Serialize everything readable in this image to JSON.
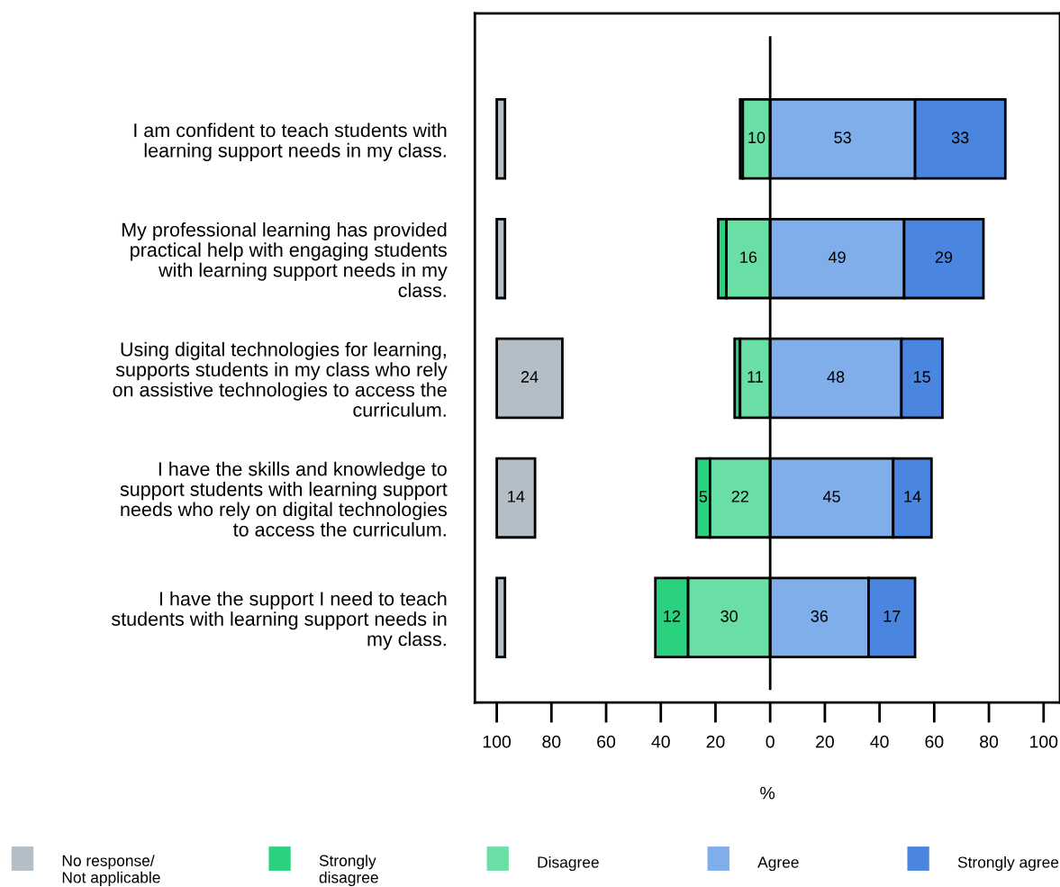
{
  "chart_data": {
    "type": "bar",
    "orientation": "horizontal",
    "xlabel": "%",
    "categories": [
      "I am confident to teach students with\nlearning support needs in my class.",
      "My professional learning has provided\npractical help with engaging students\nwith learning support needs in my\nclass.",
      "Using digital technologies for learning,\nsupports students in my class who rely\non assistive technologies to access the\ncurriculum.",
      "I have the skills and knowledge to\nsupport students with learning support\nneeds who rely on digital technologies\nto access the curriculum.",
      "I have the support I need to teach\nstudents with learning support needs in\nmy class."
    ],
    "series": [
      {
        "name": "No response/\nNot applicable",
        "color": "#b4bec6",
        "values": [
          3,
          3,
          24,
          14,
          3
        ],
        "base": [
          -100,
          -100,
          -100,
          -100,
          -100
        ],
        "value_labels": [
          null,
          null,
          "24",
          "14",
          null
        ]
      },
      {
        "name": "Strongly\ndisagree",
        "color": "#2ad17f",
        "values": [
          1,
          3,
          2,
          5,
          12
        ],
        "base": [
          -11,
          -19,
          -13,
          -27,
          -42
        ],
        "value_labels": [
          null,
          null,
          null,
          "5",
          "12"
        ]
      },
      {
        "name": "Disagree",
        "color": "#6adfa5",
        "values": [
          10,
          16,
          11,
          22,
          30
        ],
        "base": [
          -10,
          -16,
          -11,
          -22,
          -30
        ],
        "value_labels": [
          "10",
          "16",
          "11",
          "22",
          "30"
        ]
      },
      {
        "name": "Agree",
        "color": "#80aeea",
        "values": [
          53,
          49,
          48,
          45,
          36
        ],
        "base": [
          0,
          0,
          0,
          0,
          0
        ],
        "value_labels": [
          "53",
          "49",
          "48",
          "45",
          "36"
        ]
      },
      {
        "name": "Strongly agree",
        "color": "#4a86e0",
        "values": [
          33,
          29,
          15,
          14,
          17
        ],
        "base": [
          53,
          49,
          48,
          45,
          36
        ],
        "value_labels": [
          "33",
          "29",
          "15",
          "14",
          "17"
        ]
      }
    ],
    "xlim": [
      -108,
      106
    ],
    "xticks": [
      {
        "value": -100,
        "label": "100"
      },
      {
        "value": -80,
        "label": "80"
      },
      {
        "value": -60,
        "label": "60"
      },
      {
        "value": -40,
        "label": "40"
      },
      {
        "value": -20,
        "label": "20"
      },
      0,
      20,
      40,
      60,
      80,
      100
    ],
    "ref_lines": [
      {
        "axis": "x",
        "value": 0,
        "color": "#000000"
      }
    ],
    "grid": false,
    "legend": "bottom"
  }
}
